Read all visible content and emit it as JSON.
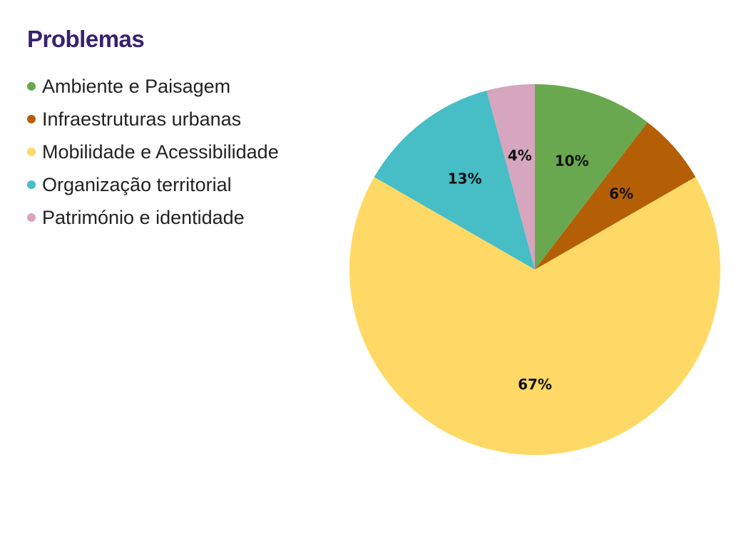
{
  "title": "Problemas",
  "chart_data": {
    "type": "pie",
    "title": "Problemas",
    "categories": [
      "Ambiente e Paisagem",
      "Infraestruturas urbanas",
      "Mobilidade e Acessibilidade",
      "Organização territorial",
      "Património e identidade"
    ],
    "values": [
      10.4,
      6.3,
      66.7,
      12.5,
      4.2
    ],
    "labels": [
      "10%",
      "6%",
      "67%",
      "13%",
      "4%"
    ],
    "colors": [
      "#6aa84f",
      "#b45f06",
      "#ffd966",
      "#47bdc6",
      "#d5a6bd"
    ],
    "start_angle": "12 o'clock",
    "direction": "clockwise",
    "legend_position": "top-left"
  }
}
